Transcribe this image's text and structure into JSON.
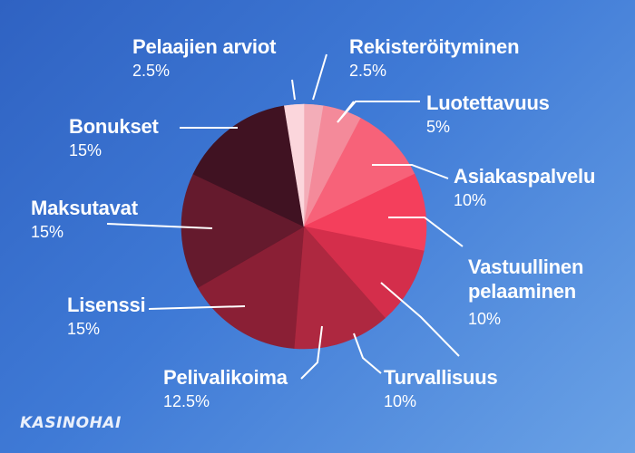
{
  "chart_data": {
    "type": "pie",
    "slices": [
      {
        "label": "Rekisteröityminen",
        "value": 2.5,
        "value_label": "2.5%",
        "color": "#f3adb8"
      },
      {
        "label": "Luotettavuus",
        "value": 5,
        "value_label": "5%",
        "color": "#f48a9a"
      },
      {
        "label": "Asiakaspalvelu",
        "value": 10,
        "value_label": "10%",
        "color": "#f76279"
      },
      {
        "label": "Vastuullinen pelaaminen",
        "value": 10,
        "value_label": "10%",
        "color": "#f43f5c"
      },
      {
        "label": "Turvallisuus",
        "value": 10,
        "value_label": "10%",
        "color": "#d42e4b"
      },
      {
        "label": "Pelivalikoima",
        "value": 12.5,
        "value_label": "12.5%",
        "color": "#ae2840"
      },
      {
        "label": "Lisenssi",
        "value": 15,
        "value_label": "15%",
        "color": "#8a1f35"
      },
      {
        "label": "Maksutavat",
        "value": 15,
        "value_label": "15%",
        "color": "#651a2d"
      },
      {
        "label": "Bonukset",
        "value": 15,
        "value_label": "15%",
        "color": "#401222"
      },
      {
        "label": "Pelaajien arviot",
        "value": 2.5,
        "value_label": "2.5%",
        "color": "#fbd6dc"
      }
    ],
    "label_lines": {
      "Rekisteröityminen": "Rekisteröityminen",
      "Luotettavuus": "Luotettavuus",
      "Asiakaspalvelu": "Asiakaspalvelu",
      "Vastuullinen pelaaminen": [
        "Vastuullinen",
        "pelaaminen"
      ],
      "Turvallisuus": "Turvallisuus",
      "Pelivalikoima": "Pelivalikoima",
      "Lisenssi": "Lisenssi",
      "Maksutavat": "Maksutavat",
      "Bonukset": "Bonukset",
      "Pelaajien arviot": "Pelaajien arviot"
    }
  },
  "brand": {
    "logo_text": "KASINOHAI"
  },
  "colors": {
    "background_start": "#2f62c2",
    "background_end": "#6aa2e6",
    "label_text": "#ffffff",
    "leader_line": "#ffffff"
  }
}
